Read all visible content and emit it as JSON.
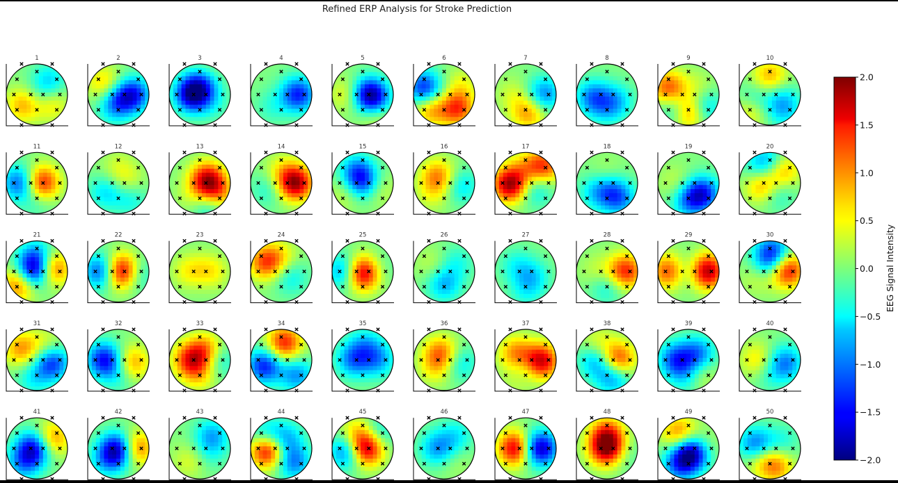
{
  "title": "Refined ERP Analysis for Stroke Prediction",
  "chart_data": {
    "type": "heatmap",
    "title": "Refined ERP Analysis for Stroke Prediction",
    "description_of_layout": "50 small scalp topographic maps arranged in 5 rows x 10 columns",
    "panel_labels": [
      "1",
      "2",
      "3",
      "4",
      "5",
      "6",
      "7",
      "8",
      "9",
      "10",
      "11",
      "12",
      "13",
      "14",
      "15",
      "16",
      "17",
      "18",
      "19",
      "20",
      "21",
      "22",
      "23",
      "24",
      "25",
      "26",
      "27",
      "28",
      "29",
      "30",
      "31",
      "32",
      "33",
      "34",
      "35",
      "36",
      "37",
      "38",
      "39",
      "40",
      "41",
      "42",
      "43",
      "44",
      "45",
      "46",
      "47",
      "48",
      "49",
      "50"
    ],
    "colormap": "jet",
    "colorbar": {
      "label": "EEG Signal Intensity",
      "range": [
        -2.0,
        2.0
      ],
      "ticks": [
        "2.0",
        "1.5",
        "1.0",
        "0.5",
        "0.0",
        "−0.5",
        "−1.0",
        "−1.5",
        "−2.0"
      ]
    },
    "electrode_marker": "x",
    "panels": [
      {
        "id": 1,
        "blobs": [
          [
            0.45,
            0.3,
            0.7
          ],
          [
            -0.45,
            0.35,
            0.8
          ],
          [
            0.4,
            -0.45,
            -0.6
          ],
          [
            0.2,
            0.1,
            -0.4
          ]
        ]
      },
      {
        "id": 2,
        "blobs": [
          [
            0.5,
            0.0,
            -1.3
          ],
          [
            0.0,
            0.2,
            -0.9
          ],
          [
            -0.45,
            -0.35,
            0.7
          ],
          [
            -0.2,
            0.5,
            -0.3
          ]
        ]
      },
      {
        "id": 3,
        "blobs": [
          [
            -0.25,
            0.0,
            -1.8
          ],
          [
            0.1,
            -0.4,
            -1.2
          ],
          [
            0.4,
            0.3,
            -0.3
          ],
          [
            0.2,
            -0.6,
            0.5
          ]
        ]
      },
      {
        "id": 4,
        "blobs": [
          [
            0.55,
            0.0,
            -1.4
          ],
          [
            -0.3,
            0.4,
            -0.3
          ]
        ]
      },
      {
        "id": 5,
        "blobs": [
          [
            0.2,
            0.0,
            -1.5
          ],
          [
            -0.5,
            0.0,
            0.5
          ],
          [
            0.4,
            0.2,
            -0.8
          ],
          [
            0.4,
            0.6,
            0.5
          ]
        ]
      },
      {
        "id": 6,
        "blobs": [
          [
            -0.65,
            -0.2,
            -1.4
          ],
          [
            -0.4,
            0.45,
            1.0
          ],
          [
            0.4,
            0.45,
            1.4
          ],
          [
            0.55,
            -0.3,
            0.4
          ],
          [
            0.0,
            0.3,
            -0.3
          ]
        ]
      },
      {
        "id": 7,
        "blobs": [
          [
            0.6,
            0.0,
            -1.0
          ],
          [
            0.1,
            0.6,
            0.9
          ],
          [
            -0.4,
            0.0,
            0.3
          ]
        ]
      },
      {
        "id": 8,
        "blobs": [
          [
            -0.45,
            0.1,
            -1.0
          ],
          [
            0.3,
            0.2,
            -0.6
          ],
          [
            0.0,
            0.5,
            -0.4
          ]
        ]
      },
      {
        "id": 9,
        "blobs": [
          [
            -0.65,
            -0.2,
            1.2
          ],
          [
            0.0,
            0.55,
            1.3
          ],
          [
            -0.4,
            0.45,
            -0.8
          ],
          [
            0.5,
            0.4,
            -0.8
          ],
          [
            0.3,
            -0.2,
            0.3
          ]
        ]
      },
      {
        "id": 10,
        "blobs": [
          [
            0.0,
            -0.6,
            0.8
          ],
          [
            -0.5,
            0.2,
            -0.6
          ],
          [
            0.4,
            0.2,
            -0.6
          ],
          [
            -0.6,
            0.5,
            0.7
          ],
          [
            0.45,
            0.6,
            -0.4
          ]
        ]
      },
      {
        "id": 11,
        "blobs": [
          [
            0.15,
            0.0,
            1.5
          ],
          [
            -0.55,
            0.0,
            -1.2
          ],
          [
            0.0,
            0.6,
            -0.3
          ]
        ]
      },
      {
        "id": 12,
        "blobs": [
          [
            -0.4,
            0.3,
            -0.6
          ],
          [
            0.3,
            0.0,
            0.4
          ],
          [
            0.4,
            0.5,
            -0.5
          ],
          [
            0.0,
            -0.5,
            0.3
          ]
        ]
      },
      {
        "id": 13,
        "blobs": [
          [
            0.25,
            -0.1,
            1.7
          ],
          [
            0.55,
            0.4,
            1.0
          ],
          [
            -0.2,
            0.5,
            0.3
          ],
          [
            0.3,
            0.7,
            -0.8
          ]
        ]
      },
      {
        "id": 14,
        "blobs": [
          [
            0.45,
            0.0,
            1.9
          ],
          [
            -0.4,
            0.2,
            -0.4
          ],
          [
            0.0,
            -0.4,
            0.4
          ]
        ]
      },
      {
        "id": 15,
        "blobs": [
          [
            0.0,
            0.0,
            -1.2
          ],
          [
            -0.2,
            -0.4,
            -0.8
          ],
          [
            0.5,
            0.2,
            0.4
          ],
          [
            -0.5,
            0.3,
            0.4
          ]
        ]
      },
      {
        "id": 16,
        "blobs": [
          [
            -0.2,
            -0.2,
            1.0
          ],
          [
            0.55,
            0.1,
            -0.6
          ],
          [
            -0.4,
            0.4,
            0.3
          ]
        ]
      },
      {
        "id": 17,
        "blobs": [
          [
            -0.5,
            0.05,
            1.9
          ],
          [
            0.6,
            -0.55,
            1.2
          ],
          [
            0.3,
            0.2,
            -0.6
          ],
          [
            0.0,
            -0.5,
            0.5
          ]
        ]
      },
      {
        "id": 18,
        "blobs": [
          [
            0.2,
            0.3,
            -0.8
          ],
          [
            -0.35,
            0.3,
            -0.6
          ],
          [
            0.45,
            0.6,
            -0.6
          ],
          [
            0.0,
            -0.3,
            0.2
          ]
        ]
      },
      {
        "id": 19,
        "blobs": [
          [
            0.45,
            0.35,
            -1.4
          ],
          [
            0.0,
            0.6,
            -0.8
          ],
          [
            -0.4,
            0.0,
            0.3
          ]
        ]
      },
      {
        "id": 20,
        "blobs": [
          [
            -0.2,
            0.1,
            1.0
          ],
          [
            0.4,
            -0.4,
            0.9
          ],
          [
            0.2,
            0.3,
            -0.6
          ],
          [
            -0.3,
            -0.55,
            -0.5
          ],
          [
            0.0,
            -0.7,
            -0.6
          ]
        ]
      },
      {
        "id": 21,
        "blobs": [
          [
            -0.1,
            0.0,
            -1.8
          ],
          [
            -0.55,
            0.4,
            1.2
          ],
          [
            0.5,
            -0.1,
            1.3
          ],
          [
            0.0,
            -0.5,
            -0.8
          ]
        ]
      },
      {
        "id": 22,
        "blobs": [
          [
            0.1,
            0.0,
            1.9
          ],
          [
            -0.55,
            0.0,
            -1.3
          ],
          [
            0.6,
            0.1,
            -0.6
          ]
        ]
      },
      {
        "id": 23,
        "blobs": [
          [
            -0.3,
            0.0,
            0.6
          ],
          [
            0.35,
            0.0,
            0.6
          ],
          [
            0.0,
            0.1,
            -0.2
          ]
        ]
      },
      {
        "id": 24,
        "blobs": [
          [
            -0.5,
            -0.3,
            1.2
          ],
          [
            0.3,
            0.2,
            -0.5
          ],
          [
            0.0,
            -0.5,
            0.4
          ]
        ]
      },
      {
        "id": 25,
        "blobs": [
          [
            0.0,
            0.05,
            1.9
          ],
          [
            -0.6,
            0.0,
            -1.0
          ],
          [
            0.5,
            -0.1,
            -0.3
          ]
        ]
      },
      {
        "id": 26,
        "blobs": [
          [
            0.0,
            0.4,
            -0.8
          ],
          [
            -0.35,
            -0.2,
            0.3
          ],
          [
            0.4,
            -0.3,
            -0.4
          ]
        ]
      },
      {
        "id": 27,
        "blobs": [
          [
            0.2,
            0.2,
            -0.6
          ],
          [
            -0.3,
            -0.2,
            -0.4
          ],
          [
            0.0,
            0.7,
            -0.3
          ]
        ]
      },
      {
        "id": 28,
        "blobs": [
          [
            0.6,
            0.0,
            1.4
          ],
          [
            -0.3,
            0.0,
            0.3
          ],
          [
            0.0,
            0.5,
            -0.5
          ]
        ]
      },
      {
        "id": 29,
        "blobs": [
          [
            0.6,
            0.0,
            1.9
          ],
          [
            -0.65,
            0.0,
            1.2
          ],
          [
            0.0,
            0.0,
            -0.5
          ]
        ]
      },
      {
        "id": 30,
        "blobs": [
          [
            0.55,
            -0.05,
            1.6
          ],
          [
            0.0,
            -0.3,
            -0.8
          ],
          [
            -0.4,
            0.2,
            0.3
          ],
          [
            0.1,
            -0.65,
            -1.0
          ]
        ]
      },
      {
        "id": 31,
        "blobs": [
          [
            0.5,
            0.1,
            -1.3
          ],
          [
            -0.5,
            -0.35,
            0.9
          ],
          [
            -0.1,
            0.6,
            -0.5
          ],
          [
            0.3,
            -0.5,
            0.4
          ]
        ]
      },
      {
        "id": 32,
        "blobs": [
          [
            -0.45,
            0.0,
            -1.5
          ],
          [
            0.45,
            0.1,
            0.9
          ],
          [
            0.0,
            0.5,
            -0.4
          ]
        ]
      },
      {
        "id": 33,
        "blobs": [
          [
            -0.3,
            0.0,
            1.3
          ],
          [
            0.2,
            -0.3,
            1.0
          ],
          [
            0.6,
            0.0,
            -0.6
          ],
          [
            0.0,
            0.5,
            0.5
          ]
        ]
      },
      {
        "id": 34,
        "blobs": [
          [
            -0.55,
            0.2,
            -1.4
          ],
          [
            0.1,
            -0.55,
            1.4
          ],
          [
            0.5,
            0.5,
            -0.9
          ]
        ]
      },
      {
        "id": 35,
        "blobs": [
          [
            -0.3,
            0.0,
            -1.0
          ],
          [
            0.5,
            0.0,
            -0.8
          ],
          [
            0.1,
            -0.5,
            -0.6
          ]
        ]
      },
      {
        "id": 36,
        "blobs": [
          [
            -0.1,
            -0.2,
            1.1
          ],
          [
            0.5,
            0.1,
            -0.6
          ],
          [
            -0.3,
            0.3,
            0.4
          ]
        ]
      },
      {
        "id": 37,
        "blobs": [
          [
            0.5,
            0.05,
            1.8
          ],
          [
            -0.3,
            -0.2,
            1.0
          ],
          [
            0.0,
            0.3,
            -0.6
          ],
          [
            -0.2,
            0.6,
            0.4
          ]
        ]
      },
      {
        "id": 38,
        "blobs": [
          [
            0.35,
            0.0,
            1.4
          ],
          [
            -0.35,
            0.0,
            -0.9
          ],
          [
            0.2,
            0.55,
            -1.0
          ],
          [
            -0.3,
            -0.5,
            0.5
          ]
        ]
      },
      {
        "id": 39,
        "blobs": [
          [
            -0.4,
            0.0,
            -1.2
          ],
          [
            0.3,
            -0.2,
            -1.0
          ],
          [
            0.0,
            0.55,
            -0.7
          ],
          [
            0.3,
            0.5,
            0.6
          ]
        ]
      },
      {
        "id": 40,
        "blobs": [
          [
            0.5,
            0.1,
            -1.0
          ],
          [
            -0.4,
            0.0,
            0.6
          ],
          [
            0.0,
            0.5,
            -0.3
          ]
        ]
      },
      {
        "id": 41,
        "blobs": [
          [
            -0.1,
            0.0,
            -1.6
          ],
          [
            0.5,
            -0.3,
            1.0
          ],
          [
            -0.45,
            0.5,
            -0.8
          ]
        ]
      },
      {
        "id": 42,
        "blobs": [
          [
            0.0,
            0.05,
            -1.9
          ],
          [
            0.55,
            0.0,
            1.3
          ],
          [
            -0.4,
            0.4,
            -0.6
          ]
        ]
      },
      {
        "id": 43,
        "blobs": [
          [
            0.4,
            -0.4,
            -0.8
          ],
          [
            -0.3,
            0.4,
            0.4
          ],
          [
            0.3,
            0.2,
            -0.3
          ]
        ]
      },
      {
        "id": 44,
        "blobs": [
          [
            -0.45,
            0.05,
            1.8
          ],
          [
            0.15,
            -0.3,
            -0.8
          ],
          [
            0.4,
            0.45,
            -1.0
          ],
          [
            -0.5,
            -0.4,
            -0.8
          ]
        ]
      },
      {
        "id": 45,
        "blobs": [
          [
            0.1,
            0.0,
            1.9
          ],
          [
            -0.5,
            0.1,
            -1.2
          ],
          [
            0.5,
            -0.5,
            -0.6
          ],
          [
            -0.2,
            -0.5,
            0.6
          ]
        ]
      },
      {
        "id": 46,
        "blobs": [
          [
            -0.2,
            0.0,
            -0.9
          ],
          [
            0.4,
            -0.4,
            -0.5
          ],
          [
            0.3,
            0.4,
            0.2
          ]
        ]
      },
      {
        "id": 47,
        "blobs": [
          [
            -0.3,
            0.0,
            1.9
          ],
          [
            0.5,
            0.0,
            -1.6
          ],
          [
            0.1,
            0.0,
            -0.5
          ]
        ]
      },
      {
        "id": 48,
        "blobs": [
          [
            0.0,
            0.0,
            1.9
          ],
          [
            0.0,
            -0.5,
            1.0
          ],
          [
            0.55,
            0.2,
            -0.3
          ]
        ]
      },
      {
        "id": 49,
        "blobs": [
          [
            0.1,
            0.15,
            -1.9
          ],
          [
            -0.3,
            0.55,
            -1.0
          ],
          [
            -0.3,
            -0.5,
            1.0
          ],
          [
            0.5,
            -0.1,
            0.3
          ]
        ]
      },
      {
        "id": 50,
        "blobs": [
          [
            -0.45,
            -0.1,
            -1.2
          ],
          [
            -0.3,
            0.3,
            0.6
          ],
          [
            0.2,
            0.6,
            0.9
          ],
          [
            0.4,
            -0.2,
            -0.4
          ]
        ]
      }
    ]
  }
}
